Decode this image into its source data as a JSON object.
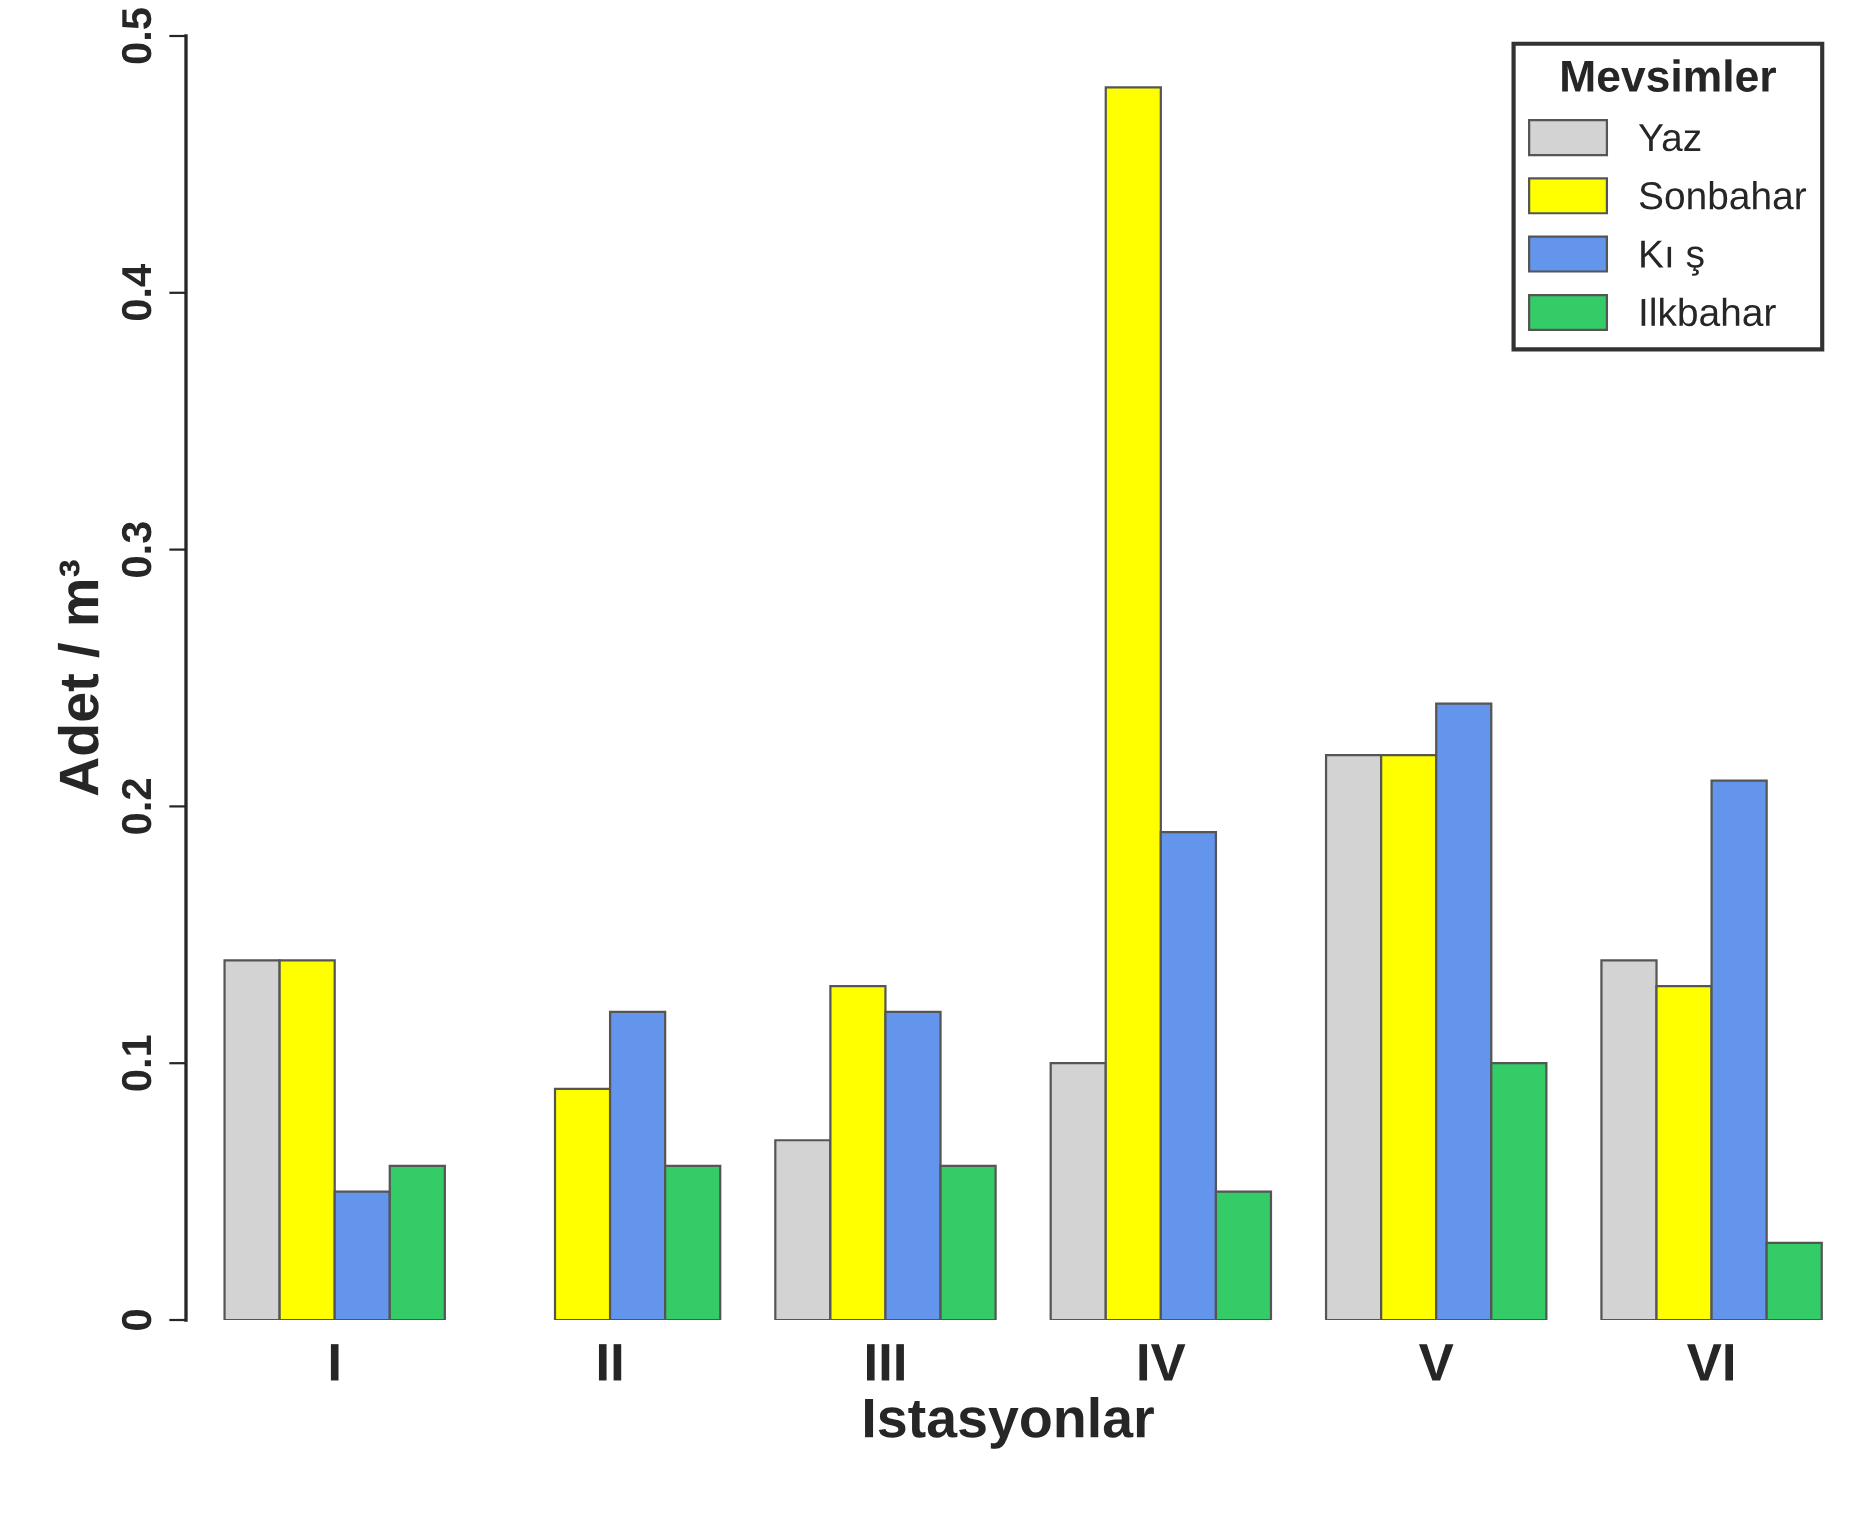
{
  "chart_data": {
    "type": "bar",
    "xlabel": "Istasyonlar",
    "ylabel": "Adet / m³",
    "categories": [
      "I",
      "II",
      "III",
      "IV",
      "V",
      "VI"
    ],
    "series": [
      {
        "name": "Yaz",
        "color": "#d3d3d3",
        "values": [
          0.14,
          0,
          0.07,
          0.1,
          0.22,
          0.14
        ]
      },
      {
        "name": "Sonbahar",
        "color": "#ffff00",
        "values": [
          0.14,
          0.09,
          0.13,
          0.48,
          0.22,
          0.13
        ]
      },
      {
        "name": "Kı ş",
        "color": "#6495ed",
        "values": [
          0.05,
          0.12,
          0.12,
          0.19,
          0.24,
          0.21
        ]
      },
      {
        "name": "Ilkbahar",
        "color": "#33cc66",
        "values": [
          0.06,
          0.06,
          0.06,
          0.05,
          0.1,
          0.03
        ]
      }
    ],
    "legend_title": "Mevsimler",
    "legend": "top right",
    "grid": false,
    "ylim": [
      0,
      0.5
    ],
    "yticks": [
      0,
      0.1,
      0.2,
      0.3,
      0.4,
      0.5
    ]
  }
}
